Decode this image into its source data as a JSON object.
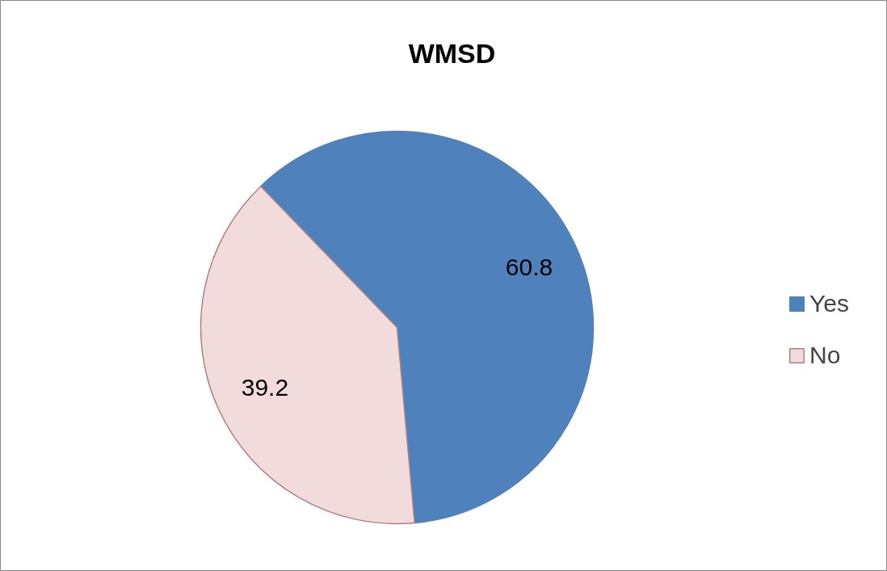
{
  "chart_data": {
    "type": "pie",
    "title": "WMSD",
    "categories": [
      "Yes",
      "No"
    ],
    "values": [
      60.8,
      39.2
    ],
    "colors": [
      "#4f81bd",
      "#f2dcdb"
    ],
    "data_labels": true,
    "legend": "right"
  }
}
